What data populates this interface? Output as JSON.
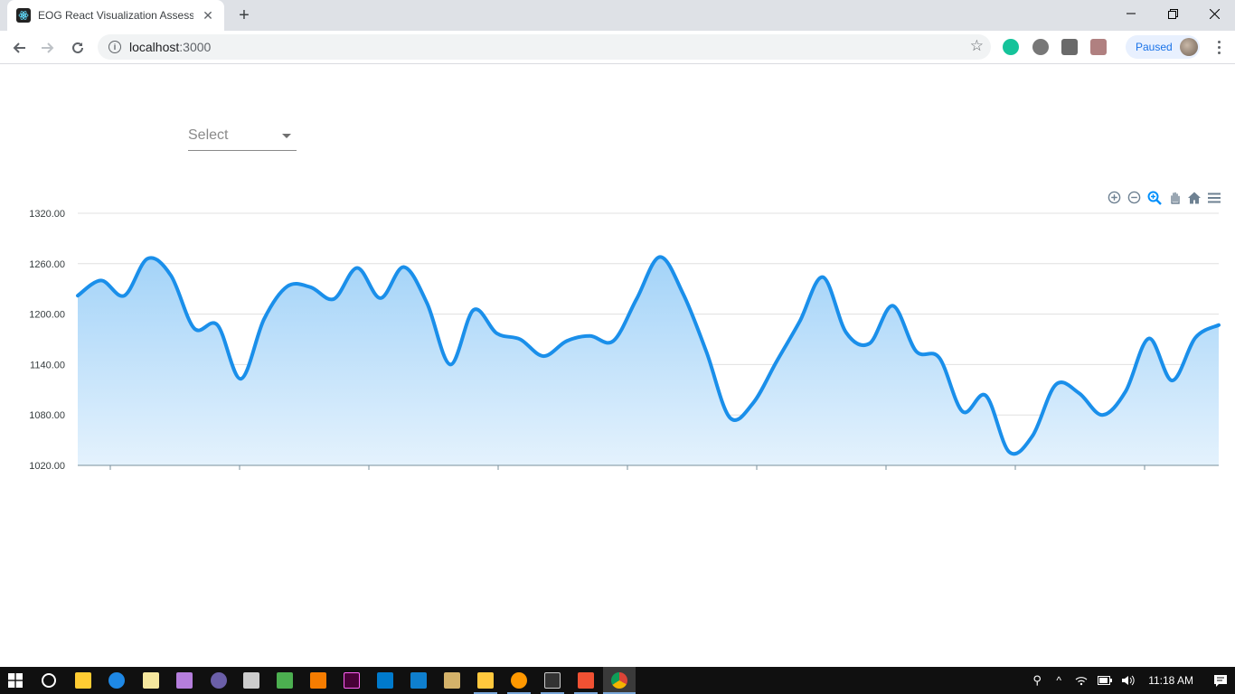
{
  "browser": {
    "tab_title": "EOG React Visualization Assessm",
    "url_host": "localhost",
    "url_port": ":3000",
    "profile_status": "Paused"
  },
  "page": {
    "select_placeholder": "Select"
  },
  "chart_toolbar": [
    "zoom-in-icon",
    "zoom-out-icon",
    "selection-zoom-icon",
    "pan-icon",
    "reset-zoom-home-icon",
    "menu-icon"
  ],
  "chart_data": {
    "type": "area",
    "title": "",
    "xlabel": "",
    "ylabel": "",
    "ylim": [
      1020,
      1320
    ],
    "y_ticks": [
      "1320.00",
      "1260.00",
      "1200.00",
      "1140.00",
      "1080.00",
      "1020.00"
    ],
    "grid": true,
    "x_tick_count": 9,
    "colors": {
      "line": "#1a8fea",
      "fill_top": "#a3d3f8",
      "fill_bottom": "#e4f2fd"
    },
    "series": [
      {
        "values": [
          1222,
          1240,
          1222,
          1266,
          1246,
          1183,
          1187,
          1123,
          1194,
          1233,
          1232,
          1218,
          1255,
          1219,
          1256,
          1213,
          1140,
          1205,
          1177,
          1170,
          1150,
          1168,
          1174,
          1168,
          1218,
          1268,
          1224,
          1155,
          1077,
          1094,
          1143,
          1191,
          1244,
          1178,
          1165,
          1210,
          1156,
          1148,
          1084,
          1103,
          1036,
          1055,
          1116,
          1106,
          1080,
          1108,
          1171,
          1121,
          1172,
          1187
        ]
      }
    ]
  },
  "taskbar": {
    "time": "11:18 AM"
  }
}
